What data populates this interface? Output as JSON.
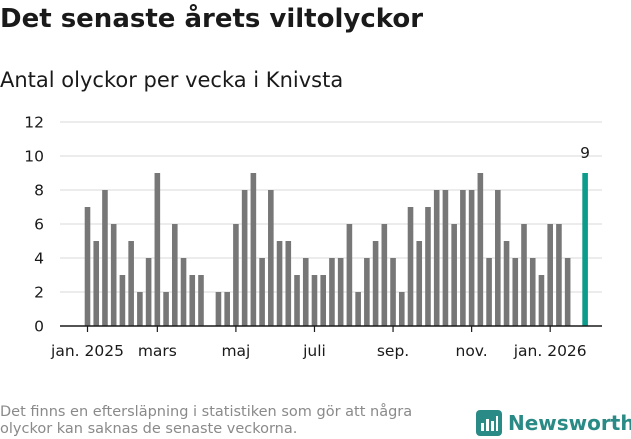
{
  "header": {
    "title": "Det senaste årets viltolyckor",
    "subtitle": "Antal olyckor per vecka i Knivsta"
  },
  "footer": {
    "note": "Det finns en eftersläpning i statistiken som gör att några olyckor kan saknas de senaste veckorna.",
    "brand": "Newsworthy",
    "brand_icon": "bar-chart-icon"
  },
  "colors": {
    "bar": "#777777",
    "highlight": "#0b9c8b",
    "grid": "#d9d9d9",
    "axis": "#1a1a1a",
    "brand": "#2a8a85"
  },
  "chart_data": {
    "type": "bar",
    "title": "Antal olyckor per vecka i Knivsta",
    "xlabel": "",
    "ylabel": "",
    "ylim": [
      0,
      12
    ],
    "yticks": [
      0,
      2,
      4,
      6,
      8,
      10,
      12
    ],
    "grid": true,
    "x_tick_labels": [
      {
        "label": "jan. 2025",
        "index": 0
      },
      {
        "label": "mars",
        "index": 8
      },
      {
        "label": "maj",
        "index": 17
      },
      {
        "label": "juli",
        "index": 26
      },
      {
        "label": "sep.",
        "index": 35
      },
      {
        "label": "nov.",
        "index": 44
      },
      {
        "label": "jan. 2026",
        "index": 53
      }
    ],
    "values": [
      7,
      5,
      8,
      6,
      3,
      5,
      2,
      4,
      9,
      2,
      6,
      4,
      3,
      3,
      0,
      2,
      2,
      6,
      8,
      9,
      4,
      8,
      5,
      5,
      3,
      4,
      3,
      3,
      4,
      4,
      6,
      2,
      4,
      5,
      6,
      4,
      2,
      7,
      5,
      7,
      8,
      8,
      6,
      8,
      8,
      9,
      4,
      8,
      5,
      4,
      6,
      4,
      3,
      6,
      6,
      4,
      0,
      9
    ],
    "highlight_index": 57,
    "highlight_label": "9"
  }
}
